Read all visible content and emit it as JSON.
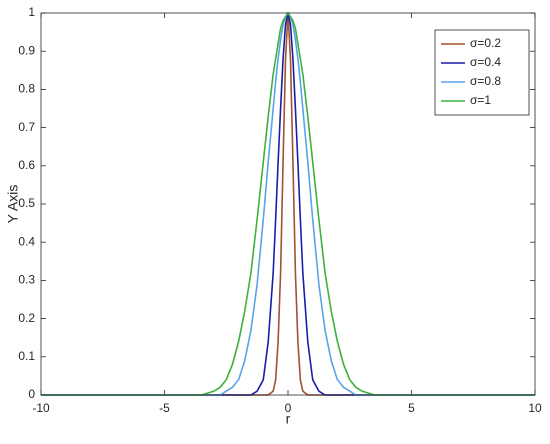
{
  "chart_data": {
    "type": "line",
    "x_label": "r",
    "y_label": "Y Axis",
    "x": [
      -10,
      -5,
      -4,
      -3.5,
      -3,
      -2.75,
      -2.5,
      -2.25,
      -2,
      -1.75,
      -1.5,
      -1.25,
      -1,
      -0.8,
      -0.6,
      -0.5,
      -0.4,
      -0.3,
      -0.2,
      -0.1,
      0,
      0.1,
      0.2,
      0.3,
      0.4,
      0.5,
      0.6,
      0.8,
      1,
      1.25,
      1.5,
      1.75,
      2,
      2.25,
      2.5,
      2.75,
      3,
      3.5,
      4,
      5,
      10
    ],
    "series": [
      {
        "name": "σ=0.2",
        "color": "#a3522e",
        "values": [
          0,
          0,
          0,
          0,
          0,
          0,
          0,
          0,
          0,
          0,
          0,
          0,
          0,
          0,
          0.01,
          0.04,
          0.14,
          0.32,
          0.61,
          0.88,
          1,
          0.88,
          0.61,
          0.32,
          0.14,
          0.04,
          0.01,
          0,
          0,
          0,
          0,
          0,
          0,
          0,
          0,
          0,
          0,
          0,
          0,
          0,
          0
        ]
      },
      {
        "name": "σ=0.4",
        "color": "#1c1ca8",
        "values": [
          0,
          0,
          0,
          0,
          0,
          0,
          0,
          0,
          0,
          0,
          0,
          0.01,
          0.04,
          0.14,
          0.32,
          0.46,
          0.61,
          0.75,
          0.88,
          0.97,
          1,
          0.97,
          0.88,
          0.75,
          0.61,
          0.46,
          0.32,
          0.14,
          0.04,
          0.01,
          0,
          0,
          0,
          0,
          0,
          0,
          0,
          0,
          0,
          0,
          0
        ]
      },
      {
        "name": "σ=0.8",
        "color": "#5aa3e8",
        "values": [
          0,
          0,
          0,
          0,
          0,
          0,
          0.01,
          0.02,
          0.04,
          0.09,
          0.17,
          0.29,
          0.46,
          0.61,
          0.75,
          0.82,
          0.88,
          0.93,
          0.97,
          0.99,
          1,
          0.99,
          0.97,
          0.93,
          0.88,
          0.82,
          0.75,
          0.61,
          0.46,
          0.29,
          0.17,
          0.09,
          0.04,
          0.02,
          0.01,
          0,
          0,
          0,
          0,
          0,
          0
        ]
      },
      {
        "name": "σ=1",
        "color": "#3fb040",
        "values": [
          0,
          0,
          0,
          0,
          0.01,
          0.02,
          0.04,
          0.08,
          0.14,
          0.22,
          0.32,
          0.46,
          0.61,
          0.73,
          0.84,
          0.88,
          0.92,
          0.96,
          0.98,
          0.99,
          1,
          0.99,
          0.98,
          0.96,
          0.92,
          0.88,
          0.84,
          0.73,
          0.61,
          0.46,
          0.32,
          0.22,
          0.14,
          0.08,
          0.04,
          0.02,
          0.01,
          0,
          0,
          0,
          0
        ]
      }
    ],
    "xlim": [
      -10,
      10
    ],
    "xticks": [
      -10,
      -5,
      0,
      5,
      10
    ],
    "ylim": [
      0,
      1
    ],
    "yticks": [
      0,
      0.1,
      0.2,
      0.3,
      0.4,
      0.5,
      0.6,
      0.7,
      0.8,
      0.9,
      1
    ],
    "grid": false,
    "legend": "top-right"
  }
}
